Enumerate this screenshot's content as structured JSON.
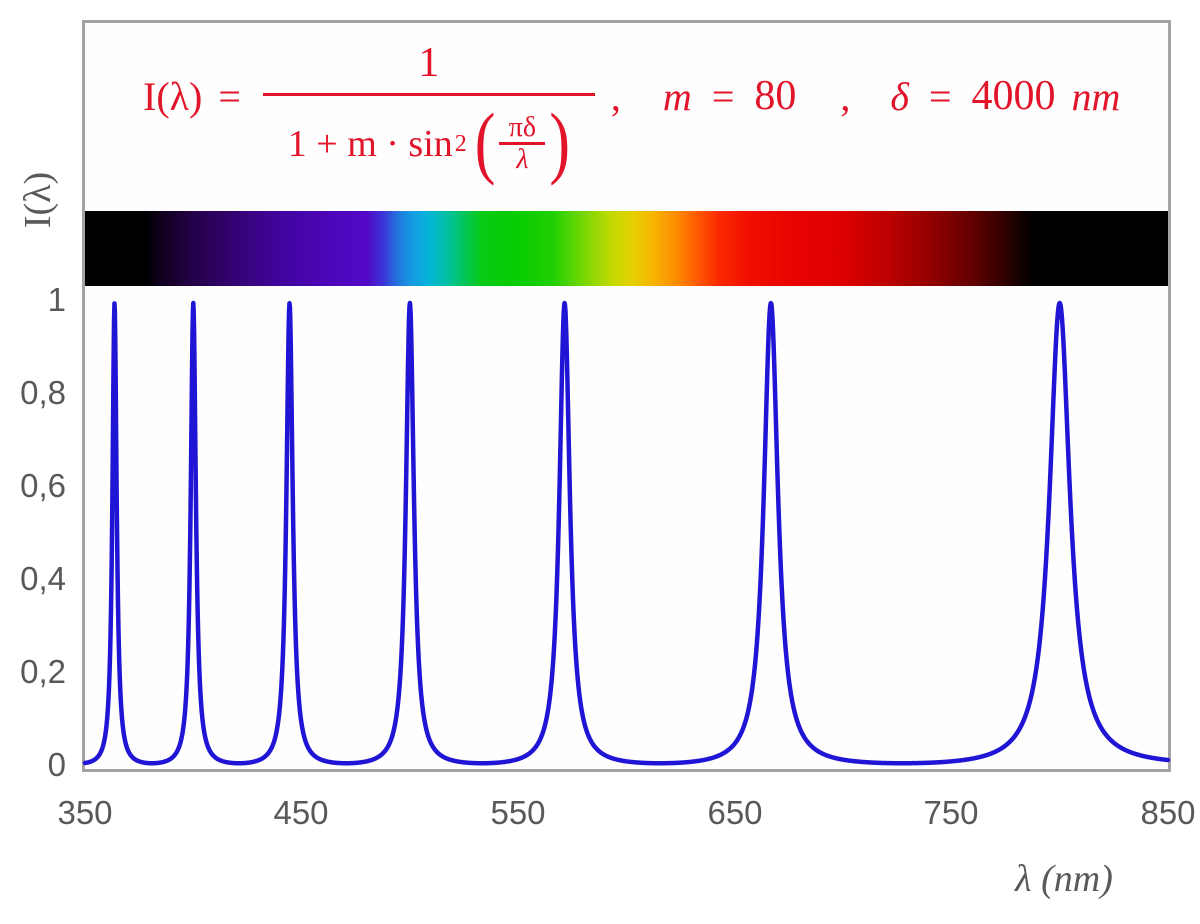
{
  "formula": {
    "color": "#e1142a",
    "lhs": "I(λ)",
    "equals": "=",
    "numerator": "1",
    "den_text": "1 + m · sin",
    "den_sup": "2",
    "paren_open": "(",
    "paren_close": ")",
    "inner_numerator": "πδ",
    "inner_denominator": "λ",
    "comma1": ",",
    "m_name": "m",
    "m_equals": "=",
    "m_value": "80",
    "comma2": ",",
    "delta_name": "δ",
    "delta_equals": "=",
    "delta_value": "4000",
    "delta_unit": "nm"
  },
  "y_axis": {
    "title": "I(λ)",
    "ticks": [
      {
        "value": 1,
        "label": "1"
      },
      {
        "value": 0.8,
        "label": "0,8"
      },
      {
        "value": 0.6,
        "label": "0,6"
      },
      {
        "value": 0.4,
        "label": "0,4"
      },
      {
        "value": 0.2,
        "label": "0,2"
      },
      {
        "value": 0,
        "label": "0"
      }
    ]
  },
  "x_axis": {
    "title": "λ  (nm)",
    "ticks": [
      {
        "value": 350,
        "label": "350"
      },
      {
        "value": 450,
        "label": "450"
      },
      {
        "value": 550,
        "label": "550"
      },
      {
        "value": 650,
        "label": "650"
      },
      {
        "value": 750,
        "label": "750"
      },
      {
        "value": 850,
        "label": "850"
      }
    ]
  },
  "spectrum_bar": {
    "description": "visible light spectrum mapped to wavelength axis, black outside 380-780 nm",
    "range_nm": [
      350,
      850
    ],
    "stops": [
      {
        "nm": 350,
        "color": "#000000"
      },
      {
        "nm": 378,
        "color": "#000000"
      },
      {
        "nm": 385,
        "color": "#10001d"
      },
      {
        "nm": 400,
        "color": "#240148"
      },
      {
        "nm": 418,
        "color": "#330270"
      },
      {
        "nm": 440,
        "color": "#42049d"
      },
      {
        "nm": 460,
        "color": "#4b06b6"
      },
      {
        "nm": 480,
        "color": "#5208c6"
      },
      {
        "nm": 488,
        "color": "#3a35d8"
      },
      {
        "nm": 494,
        "color": "#2372dc"
      },
      {
        "nm": 501,
        "color": "#149ce2"
      },
      {
        "nm": 509,
        "color": "#03b5d8"
      },
      {
        "nm": 517,
        "color": "#02c0a4"
      },
      {
        "nm": 525,
        "color": "#02c55c"
      },
      {
        "nm": 533,
        "color": "#07ca16"
      },
      {
        "nm": 546,
        "color": "#03cc03"
      },
      {
        "nm": 566,
        "color": "#20d002"
      },
      {
        "nm": 581,
        "color": "#7cd704"
      },
      {
        "nm": 593,
        "color": "#c2da03"
      },
      {
        "nm": 603,
        "color": "#e6d002"
      },
      {
        "nm": 613,
        "color": "#f8b202"
      },
      {
        "nm": 623,
        "color": "#fe8c01"
      },
      {
        "nm": 633,
        "color": "#ff5801"
      },
      {
        "nm": 643,
        "color": "#fa2800"
      },
      {
        "nm": 656,
        "color": "#f11000"
      },
      {
        "nm": 676,
        "color": "#e90300"
      },
      {
        "nm": 700,
        "color": "#dd0000"
      },
      {
        "nm": 722,
        "color": "#ba0000"
      },
      {
        "nm": 742,
        "color": "#8f0000"
      },
      {
        "nm": 760,
        "color": "#610000"
      },
      {
        "nm": 773,
        "color": "#360000"
      },
      {
        "nm": 782,
        "color": "#120000"
      },
      {
        "nm": 789,
        "color": "#000000"
      },
      {
        "nm": 850,
        "color": "#000000"
      }
    ]
  },
  "chart_data": {
    "type": "line",
    "formula": "I(λ) = 1 / (1 + m·sin²(πδ/λ)) , m = 80 , δ = 4000 nm",
    "params": {
      "m": 80,
      "delta_nm": 4000
    },
    "x_range": [
      350,
      850
    ],
    "y_range": [
      0,
      1
    ],
    "x_ticks": [
      350,
      450,
      550,
      650,
      750,
      850
    ],
    "y_ticks": [
      0,
      0.2,
      0.4,
      0.6,
      0.8,
      1
    ],
    "xlabel": "λ  (nm)",
    "ylabel": "I(λ)",
    "peaks_nm": [
      363.64,
      400,
      444.44,
      500,
      571.43,
      666.67,
      800
    ],
    "peak_value": 1,
    "min_value": 0.0123,
    "sample_step_nm": 0.2,
    "curve_color": "#2015d4",
    "line_width": 4.5,
    "grid": false,
    "legend": false,
    "frame_color": "#a3a3a3",
    "tick_color": "#595959"
  }
}
